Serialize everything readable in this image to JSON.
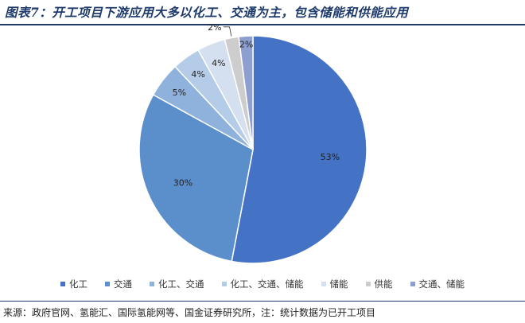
{
  "title": "图表7：开工项目下游应用大多以化工、交通为主，包含储能和供能应用",
  "source": "来源：政府官网、氢能汇、国际氢能网等、国金证券研究所，注：统计数据为已开工项目",
  "chart_data": {
    "type": "pie",
    "title": "",
    "legend_position": "bottom",
    "slices": [
      {
        "label": "化工",
        "value": 53,
        "display": "53%",
        "color": "#4472c4"
      },
      {
        "label": "交通",
        "value": 30,
        "display": "30%",
        "color": "#5b8fcc"
      },
      {
        "label": "化工、交通",
        "value": 5,
        "display": "5%",
        "color": "#8eb2dc"
      },
      {
        "label": "化工、交通、储能",
        "value": 4,
        "display": "4%",
        "color": "#b4cce7"
      },
      {
        "label": "储能",
        "value": 4,
        "display": "4%",
        "color": "#d4e0ef"
      },
      {
        "label": "供能",
        "value": 2,
        "display": "2%",
        "color": "#cdcdcd"
      },
      {
        "label": "交通、储能",
        "value": 2,
        "display": "2%",
        "color": "#8d9fd0"
      }
    ]
  }
}
